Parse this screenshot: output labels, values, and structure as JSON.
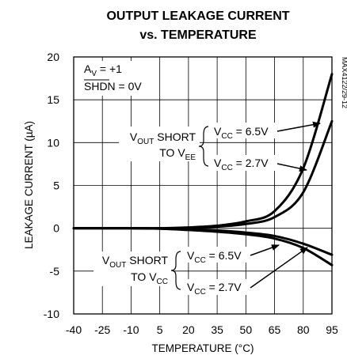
{
  "chart_data": {
    "type": "line",
    "title_line1": "OUTPUT LEAKAGE CURRENT",
    "title_line2": "vs. TEMPERATURE",
    "xlabel": "TEMPERATURE (°C)",
    "ylabel_pre": "LEAKAGE CURRENT (",
    "ylabel_mu": "µ",
    "ylabel_post": "A)",
    "xlim": [
      -40,
      95
    ],
    "ylim": [
      -10,
      20
    ],
    "x_ticks": [
      -40,
      -25,
      -10,
      5,
      20,
      35,
      50,
      65,
      80,
      95
    ],
    "y_ticks": [
      -10,
      -5,
      0,
      5,
      10,
      15,
      20
    ],
    "grid": true,
    "part_code": "MAX4122/29-12",
    "conditions": {
      "av_main": "A",
      "av_sub": "V",
      "av_value": " = +1",
      "shdn_name": "SHDN",
      "shdn_value": " = 0V"
    },
    "groups": [
      {
        "label_l1_main": "V",
        "label_l1_sub": "OUT",
        "label_l1_rest": " SHORT",
        "label_l2_main": "TO V",
        "label_l2_sub": "EE"
      },
      {
        "label_l1_main": "V",
        "label_l1_sub": "OUT",
        "label_l1_rest": " SHORT",
        "label_l2_main": "TO V",
        "label_l2_sub": "CC"
      }
    ],
    "series": [
      {
        "name_main": "V",
        "name_sub": "CC",
        "name_rest": " = 6.5V",
        "x": [
          -40,
          -10,
          5,
          20,
          35,
          50,
          65,
          80,
          95
        ],
        "y": [
          0,
          0,
          0,
          0.1,
          0.3,
          0.8,
          2.0,
          7.0,
          18.0
        ]
      },
      {
        "name_main": "V",
        "name_sub": "CC",
        "name_rest": " = 2.7V",
        "x": [
          -40,
          -10,
          5,
          20,
          35,
          50,
          65,
          80,
          95
        ],
        "y": [
          0,
          0,
          0,
          0.05,
          0.2,
          0.5,
          1.3,
          4.2,
          12.5
        ]
      },
      {
        "name_main": "V",
        "name_sub": "CC",
        "name_rest": " = 6.5V",
        "x": [
          -40,
          -10,
          5,
          20,
          35,
          50,
          65,
          80,
          95
        ],
        "y": [
          0,
          0,
          -0.05,
          -0.2,
          -0.4,
          -0.7,
          -1.2,
          -2.3,
          -4.3
        ]
      },
      {
        "name_main": "V",
        "name_sub": "CC",
        "name_rest": " = 2.7V",
        "x": [
          -40,
          -10,
          5,
          20,
          35,
          50,
          65,
          80,
          95
        ],
        "y": [
          0,
          0,
          -0.02,
          -0.1,
          -0.25,
          -0.5,
          -0.9,
          -1.8,
          -3.1
        ]
      }
    ]
  }
}
